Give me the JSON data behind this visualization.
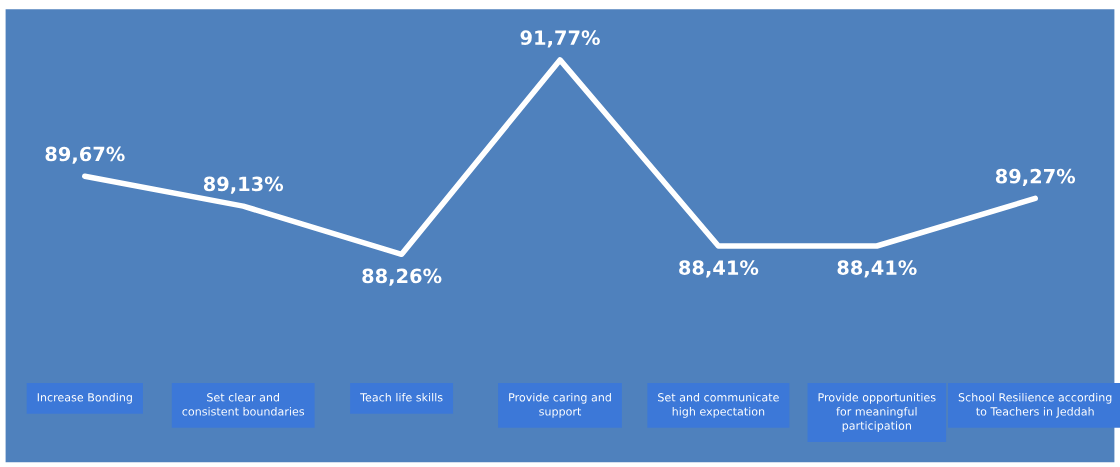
{
  "chart_data": {
    "type": "line",
    "categories": [
      "Increase Bonding",
      "Set clear and\nconsistent boundaries",
      "Teach life skills",
      "Provide caring and\nsupport",
      "Set and communicate\nhigh expectation",
      "Provide opportunities\nfor meaningful\nparticipation",
      "School Resilience according\nto Teachers in Jeddah"
    ],
    "series": [
      {
        "color": "#ffffff",
        "values": [
          89.67,
          89.13,
          88.26,
          91.77,
          88.41,
          88.41,
          89.27
        ],
        "value_labels": [
          "89,67%",
          "89,13%",
          "88,26%",
          "91,77%",
          "88,41%",
          "88,41%",
          "89,27%"
        ]
      }
    ],
    "grid": false
  }
}
